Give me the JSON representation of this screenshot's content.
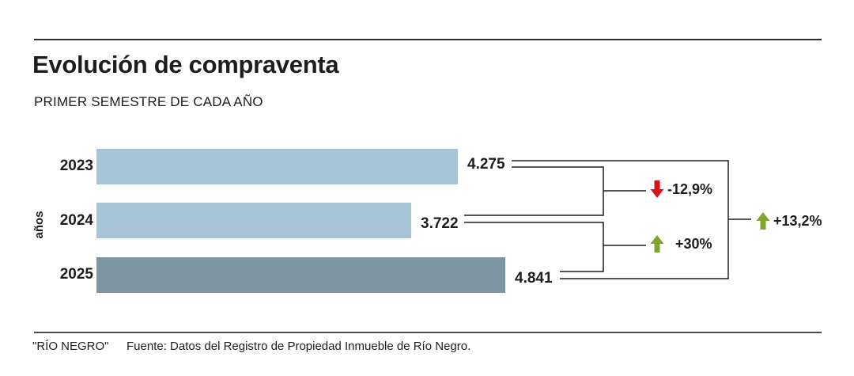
{
  "header": {
    "title": "Evolución de compraventa",
    "subtitle": "PRIMER SEMESTRE DE CADA AÑO"
  },
  "chart_data": {
    "type": "bar",
    "orientation": "horizontal",
    "title": "Evolución de compraventa",
    "subtitle": "PRIMER SEMESTRE DE CADA AÑO",
    "ylabel": "años",
    "categories": [
      "2023",
      "2024",
      "2025"
    ],
    "values": [
      4275,
      3722,
      4841
    ],
    "value_labels": [
      "4.275",
      "3.722",
      "4.841"
    ],
    "xlim": [
      0,
      5000
    ],
    "grid": false,
    "legend": "none",
    "bar_colors": [
      "#a7c4d7",
      "#a7c4d7",
      "#7e95a3"
    ],
    "comparisons": [
      {
        "from": "2023",
        "to": "2024",
        "label": "-12,9%",
        "direction": "down"
      },
      {
        "from": "2024",
        "to": "2025",
        "label": "+30%",
        "direction": "up"
      },
      {
        "from": "2023",
        "to": "2025",
        "label": "+13,2%",
        "direction": "up"
      }
    ],
    "colors": {
      "up": "#7ca62c",
      "down": "#d6121b",
      "text": "#1d1d1b"
    }
  },
  "footer": {
    "brand": "\"RÍO NEGRO\"",
    "source": "Fuente: Datos del Registro de Propiedad Inmueble de Río Negro."
  }
}
